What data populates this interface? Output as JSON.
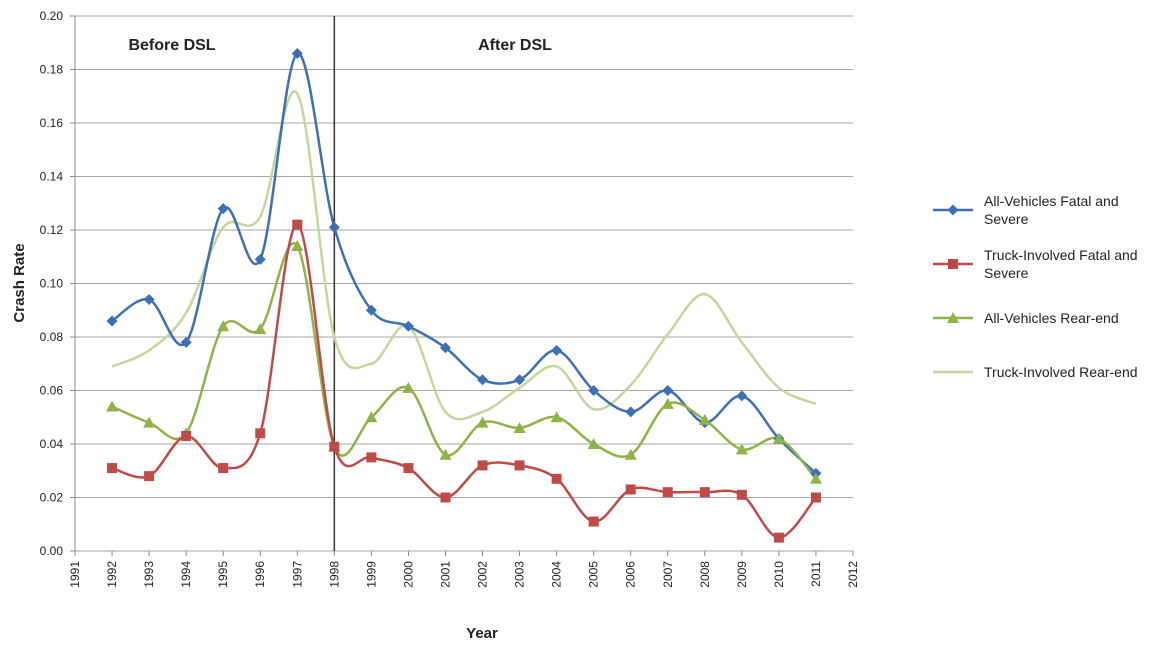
{
  "chart_data": {
    "type": "line",
    "xlabel": "Year",
    "ylabel": "Crash Rate",
    "x": [
      1992,
      1993,
      1994,
      1995,
      1996,
      1997,
      1998,
      1999,
      2000,
      2001,
      2002,
      2003,
      2004,
      2005,
      2006,
      2007,
      2008,
      2009,
      2010,
      2011
    ],
    "series": [
      {
        "name": "All-Vehicles Fatal and Severe",
        "color": "#3d6fb6",
        "marker": "diamond",
        "values": [
          0.086,
          0.094,
          0.078,
          0.128,
          0.109,
          0.186,
          0.121,
          0.09,
          0.084,
          0.076,
          0.064,
          0.064,
          0.075,
          0.06,
          0.052,
          0.06,
          0.048,
          0.058,
          0.042,
          0.029
        ]
      },
      {
        "name": "Truck-Involved Fatal and Severe",
        "color": "#be4b48",
        "marker": "square",
        "values": [
          0.031,
          0.028,
          0.043,
          0.031,
          0.044,
          0.122,
          0.039,
          0.035,
          0.031,
          0.02,
          0.032,
          0.032,
          0.027,
          0.011,
          0.023,
          0.022,
          0.022,
          0.021,
          0.005,
          0.02
        ]
      },
      {
        "name": "All-Vehicles Rear-end",
        "color": "#8fb347",
        "marker": "triangle",
        "values": [
          0.054,
          0.048,
          0.044,
          0.084,
          0.083,
          0.114,
          0.039,
          0.05,
          0.061,
          0.036,
          0.048,
          0.046,
          0.05,
          0.04,
          0.036,
          0.055,
          0.049,
          0.038,
          0.042,
          0.027
        ]
      },
      {
        "name": "Truck-Involved Rear-end",
        "color": "#c3d69b",
        "marker": "none",
        "values": [
          0.069,
          0.075,
          0.089,
          0.121,
          0.125,
          0.171,
          0.08,
          0.07,
          0.084,
          0.052,
          0.052,
          0.061,
          0.069,
          0.053,
          0.062,
          0.081,
          0.096,
          0.078,
          0.061,
          0.055
        ]
      }
    ],
    "xlim": [
      1991,
      2012
    ],
    "xticks": [
      1991,
      1992,
      1993,
      1994,
      1995,
      1996,
      1997,
      1998,
      1999,
      2000,
      2001,
      2002,
      2003,
      2004,
      2005,
      2006,
      2007,
      2008,
      2009,
      2010,
      2011,
      2012
    ],
    "ylim": [
      0,
      0.2
    ],
    "yticks": [
      {
        "value": 0,
        "label": "0.00"
      },
      {
        "value": 0.02,
        "label": "0.02"
      },
      {
        "value": 0.04,
        "label": "0.04"
      },
      {
        "value": 0.06,
        "label": "0.06"
      },
      {
        "value": 0.08,
        "label": "0.08"
      },
      {
        "value": 0.1,
        "label": "0.10"
      },
      {
        "value": 0.12,
        "label": "0.12"
      },
      {
        "value": 0.14,
        "label": "0.14"
      },
      {
        "value": 0.16,
        "label": "0.16"
      },
      {
        "value": 0.18,
        "label": "0.18"
      },
      {
        "value": 0.2,
        "label": "0.20"
      }
    ],
    "grid": true,
    "legend": "right",
    "vline": 1998,
    "annotations": [
      "Before DSL",
      "After DSL"
    ]
  }
}
